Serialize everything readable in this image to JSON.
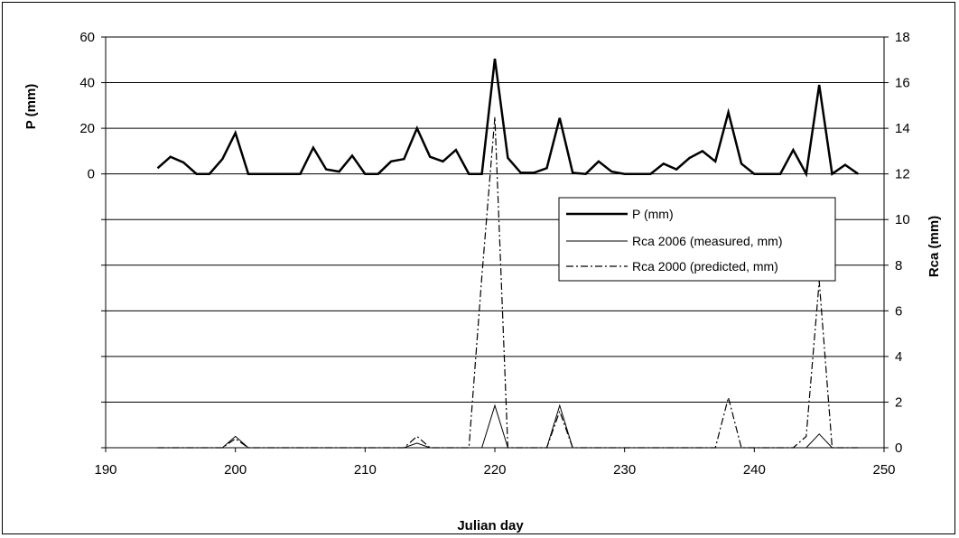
{
  "chart_data": {
    "type": "line",
    "title": "",
    "xlabel": "Julian day",
    "ylabel_left": "P (mm)",
    "ylabel_right": "Rca (mm)",
    "xlim": [
      190,
      250
    ],
    "ylim_left": [
      0,
      60
    ],
    "ylim_right": [
      0,
      18
    ],
    "x_ticks": [
      "190",
      "200",
      "210",
      "220",
      "230",
      "240",
      "250"
    ],
    "y_left_ticks": [
      "0",
      "20",
      "40",
      "60"
    ],
    "y_right_ticks": [
      "0",
      "2",
      "4",
      "6",
      "8",
      "10",
      "12",
      "14",
      "16",
      "18"
    ],
    "grid": "horizontal",
    "legend_position": "right-center",
    "series": [
      {
        "name": "P (mm)",
        "axis": "left",
        "style": "solid-thick",
        "color": "#000000",
        "x": [
          194,
          195,
          196,
          197,
          198,
          199,
          200,
          201,
          202,
          203,
          204,
          205,
          206,
          207,
          208,
          209,
          210,
          211,
          212,
          213,
          214,
          215,
          216,
          217,
          218,
          219,
          220,
          221,
          222,
          223,
          224,
          225,
          226,
          227,
          228,
          229,
          230,
          231,
          232,
          233,
          234,
          235,
          236,
          237,
          238,
          239,
          240,
          241,
          242,
          243,
          244,
          245,
          246,
          247,
          248
        ],
        "values": [
          2.5,
          7.5,
          5,
          0,
          0,
          6.5,
          18,
          0,
          0,
          0,
          0,
          0,
          11.5,
          2,
          1,
          8,
          0,
          0,
          5.5,
          6.5,
          20,
          7.5,
          5.5,
          10.5,
          0,
          0,
          50.5,
          7,
          0.5,
          0.5,
          2.5,
          24.5,
          0.5,
          0,
          5.5,
          1,
          0,
          0,
          0,
          4.5,
          2,
          7,
          10,
          5.5,
          27,
          4.5,
          0,
          0,
          0,
          10.5,
          0,
          39,
          0,
          4,
          0
        ]
      },
      {
        "name": "Rca 2006 (measured, mm)",
        "axis": "right",
        "style": "solid-thin",
        "color": "#000000",
        "x": [
          194,
          199,
          200,
          201,
          213,
          214,
          215,
          219,
          220,
          221,
          224,
          225,
          226,
          244,
          245,
          246,
          248
        ],
        "values": [
          0,
          0,
          0.5,
          0,
          0,
          0.2,
          0,
          0,
          1.85,
          0,
          0,
          1.85,
          0,
          0,
          0.6,
          0,
          0
        ]
      },
      {
        "name": "Rca 2000 (predicted, mm)",
        "axis": "right",
        "style": "dash-dot",
        "color": "#000000",
        "x": [
          194,
          199,
          200,
          201,
          213,
          214,
          215,
          218,
          219,
          220,
          221,
          222,
          224,
          225,
          226,
          237,
          238,
          239,
          243,
          244,
          245,
          246,
          248
        ],
        "values": [
          0,
          0,
          0.4,
          0,
          0,
          0.5,
          0,
          0,
          7.5,
          14.5,
          0,
          0,
          0,
          1.6,
          0,
          0,
          2.2,
          0,
          0,
          0.5,
          7.3,
          0,
          0
        ]
      }
    ]
  }
}
